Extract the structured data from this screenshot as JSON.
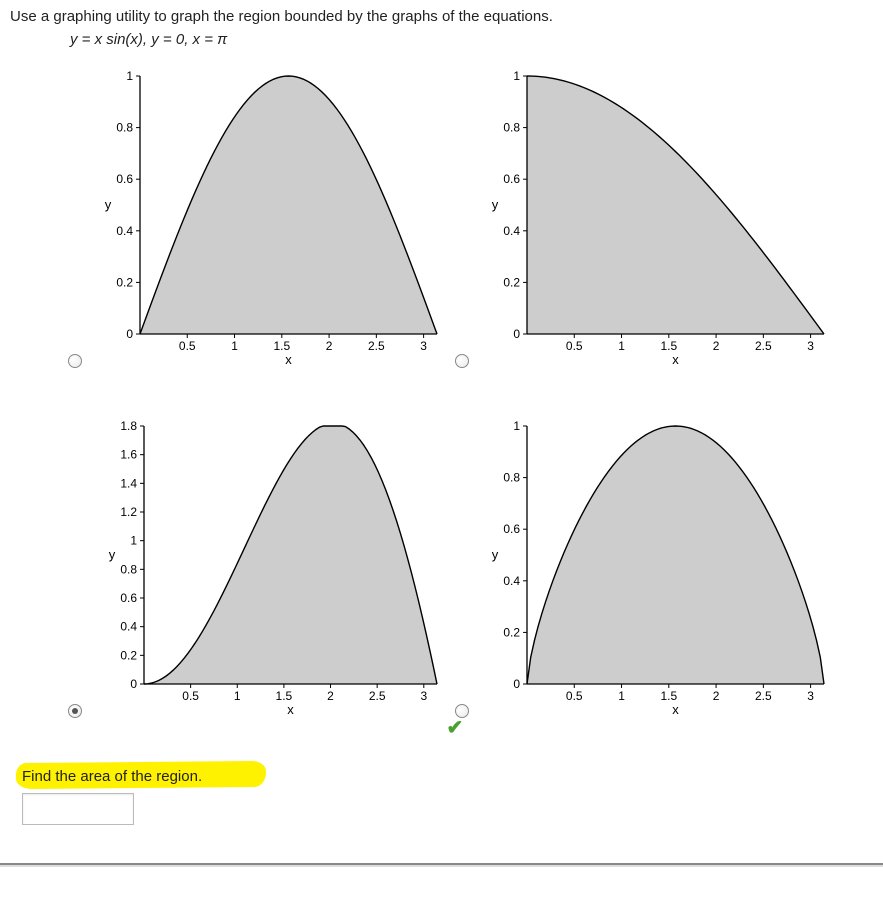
{
  "instruction": "Use a graphing utility to graph the region bounded by the graphs of the equations.",
  "equation": "y = x sin(x), y = 0, x = π",
  "find": "Find the area of the region.",
  "answer_value": "",
  "chart": {
    "fill_color": "#cdcdcd",
    "stroke_color": "#000000",
    "background_color": "#ffffff",
    "axis_color": "#000000",
    "tick_fontsize": 12,
    "axis_label_fontsize": 13,
    "x_label": "x",
    "y_label": "y",
    "xlim": [
      0,
      3.14159
    ],
    "x_ticks": [
      0.5,
      1,
      1.5,
      2,
      2.5,
      3
    ],
    "x_tick_labels": [
      "0.5",
      "1",
      "1.5",
      "2",
      "2.5",
      "3"
    ]
  },
  "options": [
    {
      "id": "A",
      "selected": false,
      "correct": false,
      "ylim": [
        0,
        1.0
      ],
      "y_ticks": [
        0,
        0.2,
        0.4,
        0.6,
        0.8,
        1
      ],
      "y_tick_labels": [
        "0",
        "0.2",
        "0.4",
        "0.6",
        "0.8",
        "1"
      ],
      "curve": "sin_shape"
    },
    {
      "id": "B",
      "selected": false,
      "correct": false,
      "ylim": [
        0,
        1.0
      ],
      "y_ticks": [
        0,
        0.2,
        0.4,
        0.6,
        0.8,
        1
      ],
      "y_tick_labels": [
        "0",
        "0.2",
        "0.4",
        "0.6",
        "0.8",
        "1"
      ],
      "curve": "decreasing"
    },
    {
      "id": "C",
      "selected": true,
      "correct": false,
      "ylim": [
        0,
        1.8
      ],
      "y_ticks": [
        0,
        0.2,
        0.4,
        0.6,
        0.8,
        1,
        1.2,
        1.4,
        1.6,
        1.8
      ],
      "y_tick_labels": [
        "0",
        "0.2",
        "0.4",
        "0.6",
        "0.8",
        "1",
        "1.2",
        "1.4",
        "1.6",
        "1.8"
      ],
      "curve": "xsin"
    },
    {
      "id": "D",
      "selected": false,
      "correct": true,
      "ylim": [
        0,
        1.0
      ],
      "y_ticks": [
        0,
        0.2,
        0.4,
        0.6,
        0.8,
        1
      ],
      "y_tick_labels": [
        "0",
        "0.2",
        "0.4",
        "0.6",
        "0.8",
        "1"
      ],
      "curve": "wide_hump"
    }
  ]
}
